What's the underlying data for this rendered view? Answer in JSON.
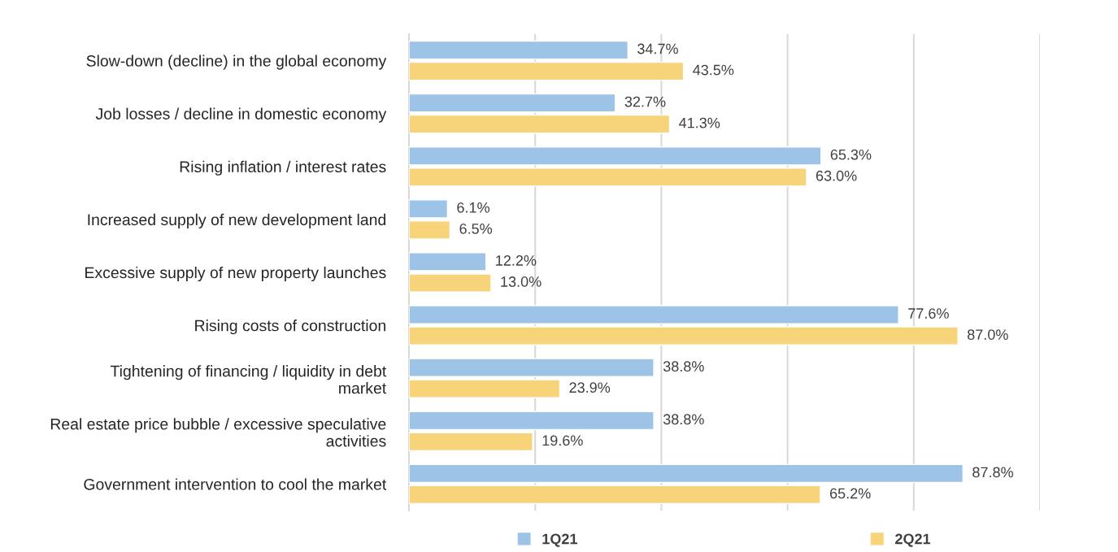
{
  "chart_data": {
    "type": "bar",
    "orientation": "horizontal",
    "categories": [
      "Slow-down (decline) in the global economy",
      "Job losses / decline in domestic economy",
      "Rising inflation / interest rates",
      "Increased supply of new development land",
      "Excessive supply of new property launches",
      "Rising costs of construction",
      "Tightening of financing / liquidity in debt\nmarket",
      "Real estate price bubble / excessive speculative\nactivities",
      "Government intervention to cool the market"
    ],
    "series": [
      {
        "name": "1Q21",
        "color": "#9dc3e6",
        "values": [
          34.7,
          32.7,
          65.3,
          6.1,
          12.2,
          77.6,
          38.8,
          38.8,
          87.8
        ],
        "value_labels": [
          "34.7%",
          "32.7%",
          "65.3%",
          "6.1%",
          "12.2%",
          "77.6%",
          "38.8%",
          "38.8%",
          "87.8%"
        ]
      },
      {
        "name": "2Q21",
        "color": "#f7d37a",
        "values": [
          43.5,
          41.3,
          63.0,
          6.5,
          13.0,
          87.0,
          23.9,
          19.6,
          65.2
        ],
        "value_labels": [
          "43.5%",
          "41.3%",
          "63.0%",
          "6.5%",
          "13.0%",
          "87.0%",
          "23.9%",
          "19.6%",
          "65.2%"
        ]
      }
    ],
    "xlim": [
      0,
      100
    ],
    "xticks": [
      {
        "value": 0,
        "label": null
      },
      {
        "value": 20,
        "label": null
      },
      {
        "value": 40,
        "label": null
      },
      {
        "value": 60,
        "label": null
      },
      {
        "value": 80,
        "label": null
      },
      {
        "value": 100,
        "label": null
      }
    ],
    "tick_labels": "y",
    "grid": "x",
    "legend": "bottom"
  }
}
